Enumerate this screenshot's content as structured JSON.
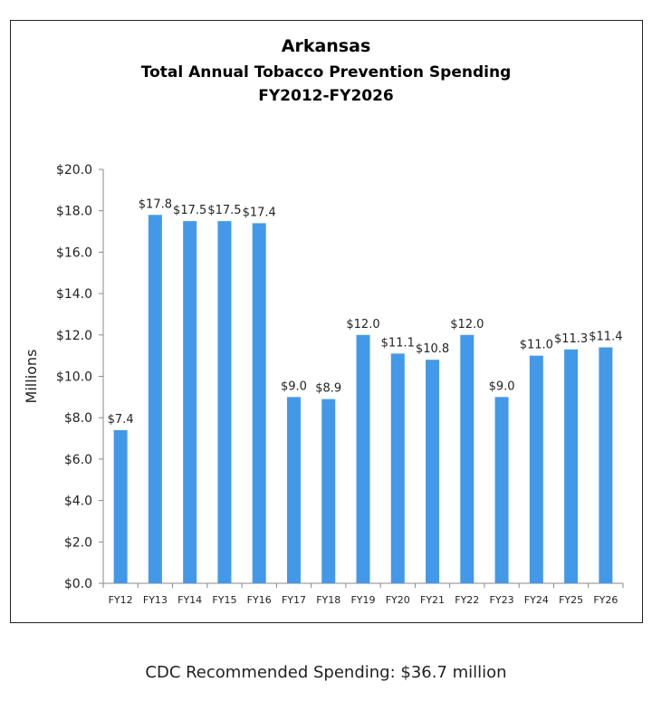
{
  "chart_data": {
    "type": "bar",
    "title": "Arkansas",
    "subtitle": "Total Annual Tobacco Prevention Spending",
    "subtitle2": "FY2012-FY2026",
    "ylabel": "Millions",
    "xlabel": "",
    "categories": [
      "FY12",
      "FY13",
      "FY14",
      "FY15",
      "FY16",
      "FY17",
      "FY18",
      "FY19",
      "FY20",
      "FY21",
      "FY22",
      "FY23",
      "FY24",
      "FY25",
      "FY26"
    ],
    "values": [
      7.4,
      17.8,
      17.5,
      17.5,
      17.4,
      9.0,
      8.9,
      12.0,
      11.1,
      10.8,
      12.0,
      9.0,
      11.0,
      11.3,
      11.4
    ],
    "data_labels": [
      "$7.4",
      "$17.8",
      "$17.5",
      "$17.5",
      "$17.4",
      "$9.0",
      "$8.9",
      "$12.0",
      "$11.1",
      "$10.8",
      "$12.0",
      "$9.0",
      "$11.0",
      "$11.3",
      "$11.4"
    ],
    "yticks": [
      "$0.0",
      "$2.0",
      "$4.0",
      "$6.0",
      "$8.0",
      "$10.0",
      "$12.0",
      "$14.0",
      "$16.0",
      "$18.0",
      "$20.0"
    ],
    "ylim": [
      0,
      20
    ],
    "grid": false,
    "legend": "none",
    "bar_color": "#4399E8"
  },
  "footer": "CDC Recommended Spending: $36.7 million"
}
